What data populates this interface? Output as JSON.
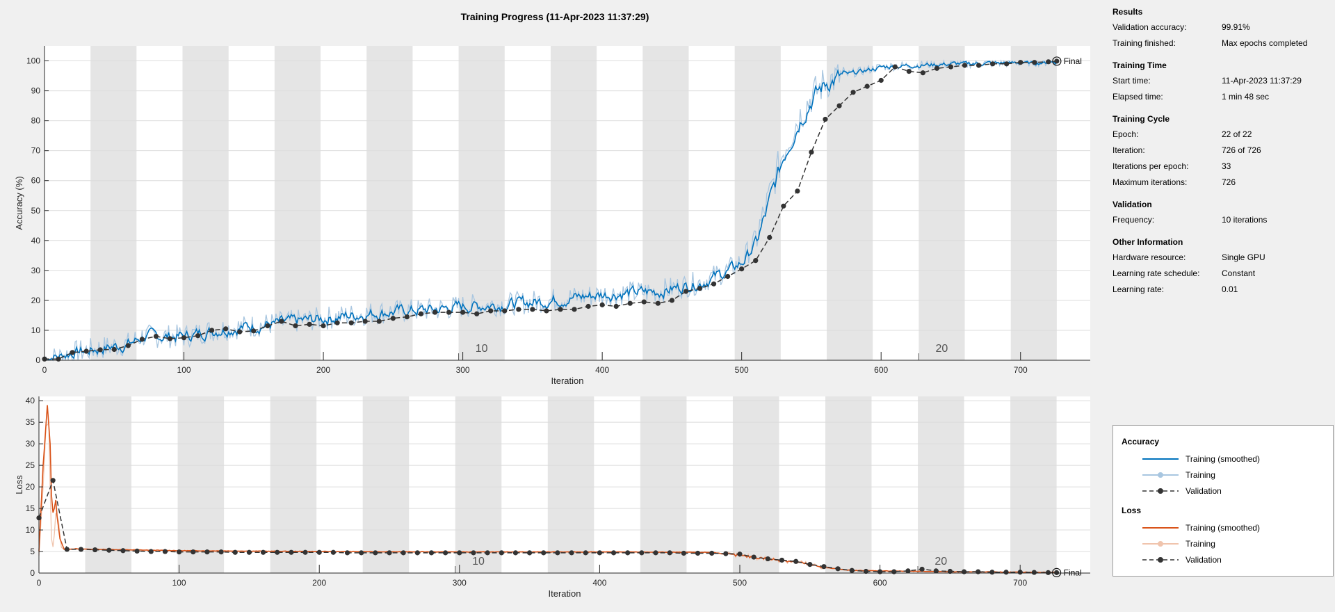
{
  "title": "Training Progress (11-Apr-2023 11:37:29)",
  "info": {
    "sections": [
      {
        "heading": "Results",
        "rows": [
          {
            "label": "Validation accuracy:",
            "value": "99.91%"
          },
          {
            "label": "Training finished:",
            "value": "Max epochs completed"
          }
        ]
      },
      {
        "heading": "Training Time",
        "rows": [
          {
            "label": "Start time:",
            "value": "11-Apr-2023 11:37:29"
          },
          {
            "label": "Elapsed time:",
            "value": "1 min 48 sec"
          }
        ]
      },
      {
        "heading": "Training Cycle",
        "rows": [
          {
            "label": "Epoch:",
            "value": "22 of 22"
          },
          {
            "label": "Iteration:",
            "value": "726 of 726"
          },
          {
            "label": "Iterations per epoch:",
            "value": "33"
          },
          {
            "label": "Maximum iterations:",
            "value": "726"
          }
        ]
      },
      {
        "heading": "Validation",
        "rows": [
          {
            "label": "Frequency:",
            "value": "10 iterations"
          }
        ]
      },
      {
        "heading": "Other Information",
        "rows": [
          {
            "label": "Hardware resource:",
            "value": "Single GPU"
          },
          {
            "label": "Learning rate schedule:",
            "value": "Constant"
          },
          {
            "label": "Learning rate:",
            "value": "0.01"
          }
        ]
      }
    ]
  },
  "legend": {
    "accuracy_heading": "Accuracy",
    "loss_heading": "Loss",
    "training_smoothed": "Training (smoothed)",
    "training": "Training",
    "validation": "Validation"
  },
  "colors": {
    "accuracy_smoothed": "#0072bd",
    "accuracy_raw": "#a8c6e0",
    "loss_smoothed": "#d95319",
    "loss_raw": "#f0c4ad",
    "validation": "#333333",
    "epoch_band": "#e5e5e5",
    "grid": "#dcdcdc"
  },
  "chart_data": [
    {
      "type": "line",
      "name": "accuracy",
      "xlabel": "Iteration",
      "ylabel": "Accuracy (%)",
      "xlim": [
        0,
        750
      ],
      "ylim": [
        0,
        105
      ],
      "xticks": [
        0,
        100,
        200,
        300,
        400,
        500,
        600,
        700
      ],
      "yticks": [
        0,
        10,
        20,
        30,
        40,
        50,
        60,
        70,
        80,
        90,
        100
      ],
      "iterations_per_epoch": 33,
      "max_iterations": 726,
      "epoch_labels": [
        {
          "epoch": 10,
          "text": "10"
        },
        {
          "epoch": 20,
          "text": "20"
        }
      ],
      "final_label": "Final",
      "final_value": 99.91,
      "smoothed_keypoints": [
        [
          0,
          0.5
        ],
        [
          10,
          1
        ],
        [
          20,
          2.5
        ],
        [
          40,
          4
        ],
        [
          60,
          5.5
        ],
        [
          70,
          8
        ],
        [
          100,
          8
        ],
        [
          120,
          10
        ],
        [
          140,
          11
        ],
        [
          160,
          12
        ],
        [
          180,
          13
        ],
        [
          200,
          14
        ],
        [
          240,
          16
        ],
        [
          280,
          17
        ],
        [
          300,
          18
        ],
        [
          340,
          19
        ],
        [
          360,
          20
        ],
        [
          400,
          22
        ],
        [
          440,
          23
        ],
        [
          470,
          26
        ],
        [
          490,
          30
        ],
        [
          500,
          33
        ],
        [
          510,
          40
        ],
        [
          520,
          55
        ],
        [
          530,
          70
        ],
        [
          540,
          80
        ],
        [
          550,
          88
        ],
        [
          560,
          93
        ],
        [
          580,
          96
        ],
        [
          600,
          98
        ],
        [
          620,
          98.5
        ],
        [
          650,
          99
        ],
        [
          700,
          99.5
        ],
        [
          726,
          99.8
        ]
      ],
      "validation": {
        "x": [
          0,
          10,
          20,
          30,
          40,
          50,
          60,
          70,
          80,
          90,
          100,
          110,
          120,
          130,
          140,
          150,
          160,
          170,
          180,
          190,
          200,
          210,
          220,
          230,
          240,
          250,
          260,
          270,
          280,
          290,
          300,
          310,
          320,
          330,
          340,
          350,
          360,
          370,
          380,
          390,
          400,
          410,
          420,
          430,
          440,
          450,
          460,
          470,
          480,
          490,
          500,
          510,
          520,
          530,
          540,
          550,
          560,
          570,
          580,
          590,
          600,
          610,
          620,
          630,
          640,
          650,
          660,
          670,
          680,
          690,
          700,
          710,
          720,
          726
        ],
        "y": [
          0.4,
          0.4,
          2.6,
          3,
          3.5,
          3.6,
          4.9,
          7,
          8,
          7.2,
          7.5,
          8.2,
          10,
          10.5,
          9.5,
          9.8,
          11.5,
          13,
          11.5,
          12,
          11.5,
          12.5,
          12.5,
          13,
          13,
          14,
          14.5,
          15.5,
          16,
          16,
          16,
          15.5,
          16.5,
          16.5,
          17,
          17,
          16.5,
          17,
          17,
          18,
          18.5,
          18,
          19,
          19.5,
          19,
          20,
          23,
          24,
          25.5,
          28,
          30.5,
          33.3,
          41,
          51.5,
          56.5,
          69.5,
          80.5,
          85,
          89.5,
          91.5,
          93.5,
          98,
          96.5,
          96,
          97.5,
          98,
          98.5,
          98.5,
          99,
          99,
          99.5,
          99.5,
          99.7,
          99.9
        ]
      }
    },
    {
      "type": "line",
      "name": "loss",
      "xlabel": "Iteration",
      "ylabel": "Loss",
      "xlim": [
        0,
        750
      ],
      "ylim": [
        0,
        41
      ],
      "xticks": [
        0,
        100,
        200,
        300,
        400,
        500,
        600,
        700
      ],
      "yticks": [
        0,
        5,
        10,
        15,
        20,
        25,
        30,
        35,
        40
      ],
      "iterations_per_epoch": 33,
      "max_iterations": 726,
      "epoch_labels": [
        {
          "epoch": 10,
          "text": "10"
        },
        {
          "epoch": 20,
          "text": "20"
        }
      ],
      "final_label": "Final",
      "smoothed_keypoints": [
        [
          0,
          5
        ],
        [
          3,
          25
        ],
        [
          6,
          39
        ],
        [
          8,
          30
        ],
        [
          9,
          18
        ],
        [
          10,
          14
        ],
        [
          11,
          15
        ],
        [
          12,
          17
        ],
        [
          13,
          13
        ],
        [
          15,
          8
        ],
        [
          18,
          5.5
        ],
        [
          25,
          5.6
        ],
        [
          100,
          5.2
        ],
        [
          200,
          5
        ],
        [
          300,
          4.9
        ],
        [
          400,
          4.9
        ],
        [
          480,
          4.8
        ],
        [
          500,
          4
        ],
        [
          520,
          3.3
        ],
        [
          540,
          2.6
        ],
        [
          560,
          1.3
        ],
        [
          580,
          0.6
        ],
        [
          600,
          0.5
        ],
        [
          650,
          0.3
        ],
        [
          700,
          0.2
        ],
        [
          726,
          0.15
        ]
      ],
      "raw_keypoints": [
        [
          0,
          4
        ],
        [
          3,
          20
        ],
        [
          5,
          34
        ],
        [
          7,
          35
        ],
        [
          8,
          20
        ],
        [
          9,
          8
        ],
        [
          10,
          6
        ],
        [
          11,
          9
        ],
        [
          12,
          14
        ],
        [
          14,
          12
        ],
        [
          16,
          6
        ],
        [
          18,
          5.5
        ],
        [
          25,
          5.6
        ],
        [
          100,
          5.2
        ],
        [
          200,
          5
        ],
        [
          300,
          4.9
        ],
        [
          400,
          4.9
        ],
        [
          480,
          4.8
        ],
        [
          500,
          4
        ],
        [
          520,
          3.3
        ],
        [
          540,
          2.6
        ],
        [
          560,
          1.3
        ],
        [
          580,
          0.6
        ],
        [
          600,
          0.5
        ],
        [
          650,
          0.3
        ],
        [
          700,
          0.2
        ],
        [
          726,
          0.15
        ]
      ],
      "validation": {
        "x": [
          0,
          10,
          20,
          30,
          40,
          50,
          60,
          70,
          80,
          90,
          100,
          110,
          120,
          130,
          140,
          150,
          160,
          170,
          180,
          190,
          200,
          210,
          220,
          230,
          240,
          250,
          260,
          270,
          280,
          290,
          300,
          310,
          320,
          330,
          340,
          350,
          360,
          370,
          380,
          390,
          400,
          410,
          420,
          430,
          440,
          450,
          460,
          470,
          480,
          490,
          500,
          510,
          520,
          530,
          540,
          550,
          560,
          570,
          580,
          590,
          600,
          610,
          620,
          630,
          640,
          650,
          660,
          670,
          680,
          690,
          700,
          710,
          720,
          726
        ],
        "y": [
          12.8,
          21.5,
          5.5,
          5.5,
          5.4,
          5.3,
          5.2,
          5.1,
          5.0,
          5.0,
          4.9,
          4.9,
          4.9,
          4.9,
          4.8,
          4.8,
          4.8,
          4.8,
          4.8,
          4.8,
          4.8,
          4.8,
          4.7,
          4.7,
          4.7,
          4.7,
          4.7,
          4.7,
          4.7,
          4.7,
          4.7,
          4.7,
          4.7,
          4.7,
          4.7,
          4.7,
          4.7,
          4.7,
          4.7,
          4.7,
          4.7,
          4.7,
          4.7,
          4.7,
          4.7,
          4.7,
          4.6,
          4.6,
          4.6,
          4.5,
          4.4,
          3.7,
          3.3,
          3.0,
          2.7,
          2.0,
          1.5,
          1.0,
          0.6,
          0.4,
          0.3,
          0.3,
          0.5,
          0.9,
          0.5,
          0.4,
          0.3,
          0.3,
          0.2,
          0.2,
          0.2,
          0.15,
          0.1,
          0.1
        ]
      }
    }
  ]
}
